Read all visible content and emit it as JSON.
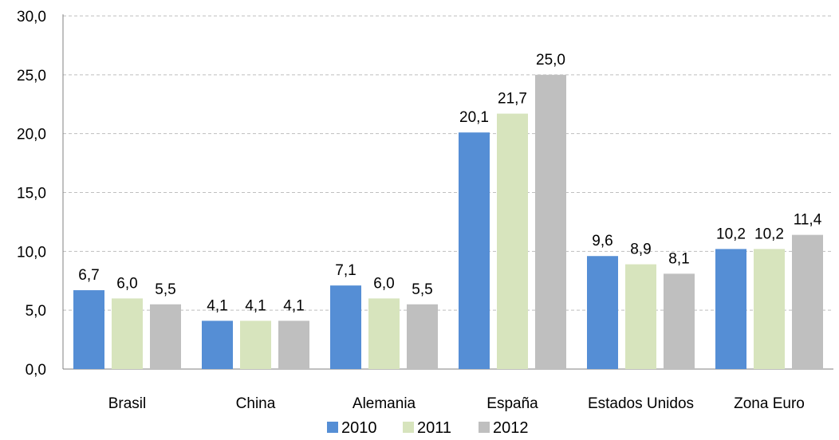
{
  "chart_data": {
    "type": "bar",
    "categories": [
      "Brasil",
      "China",
      "Alemania",
      "España",
      "Estados Unidos",
      "Zona Euro"
    ],
    "series": [
      {
        "name": "2010",
        "values": [
          6.7,
          4.1,
          7.1,
          20.1,
          9.6,
          10.2
        ]
      },
      {
        "name": "2011",
        "values": [
          6.0,
          4.1,
          6.0,
          21.7,
          8.9,
          10.2
        ]
      },
      {
        "name": "2012",
        "values": [
          5.5,
          4.1,
          5.5,
          25.0,
          8.1,
          11.4
        ]
      }
    ],
    "value_labels": [
      [
        "6,7",
        "4,1",
        "7,1",
        "20,1",
        "9,6",
        "10,2"
      ],
      [
        "6,0",
        "4,1",
        "6,0",
        "21,7",
        "8,9",
        "10,2"
      ],
      [
        "5,5",
        "4,1",
        "5,5",
        "25,0",
        "8,1",
        "11,4"
      ]
    ],
    "y_ticks": [
      "0,0",
      "5,0",
      "10,0",
      "15,0",
      "20,0",
      "25,0",
      "30,0"
    ],
    "ylim": [
      0,
      30
    ],
    "grid": true,
    "legend_position": "bottom",
    "colors": [
      "#558ed5",
      "#d7e4bd",
      "#bfbfbf"
    ]
  }
}
